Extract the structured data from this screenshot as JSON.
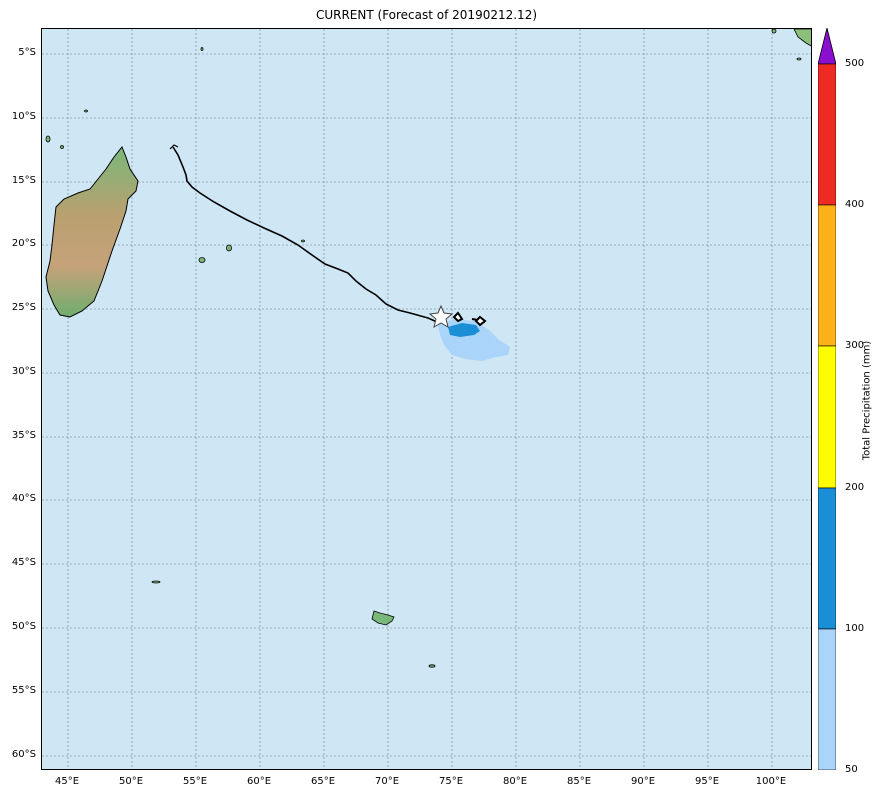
{
  "title": "CURRENT (Forecast of 20190212.12)",
  "map": {
    "ocean_color": "#cfe6f5",
    "grid_color": "#6d7f8a",
    "lat_labels": [
      "5°S",
      "10°S",
      "15°S",
      "20°S",
      "25°S",
      "30°S",
      "35°S",
      "40°S",
      "45°S",
      "50°S",
      "55°S",
      "60°S"
    ],
    "lon_labels": [
      "45°E",
      "50°E",
      "55°E",
      "60°E",
      "65°E",
      "70°E",
      "75°E",
      "80°E",
      "85°E",
      "90°E",
      "95°E",
      "100°E"
    ],
    "track_color": "#000000",
    "storm_marker": "star-icon"
  },
  "colorbar": {
    "label": "Total Precipitation (mm)",
    "ticks": [
      "50",
      "100",
      "200",
      "300",
      "400",
      "500"
    ],
    "colors": [
      "#aad4fa",
      "#1a8fd6",
      "#fdfd00",
      "#fbb117",
      "#ee2b22",
      "#8a0fd1"
    ]
  }
}
